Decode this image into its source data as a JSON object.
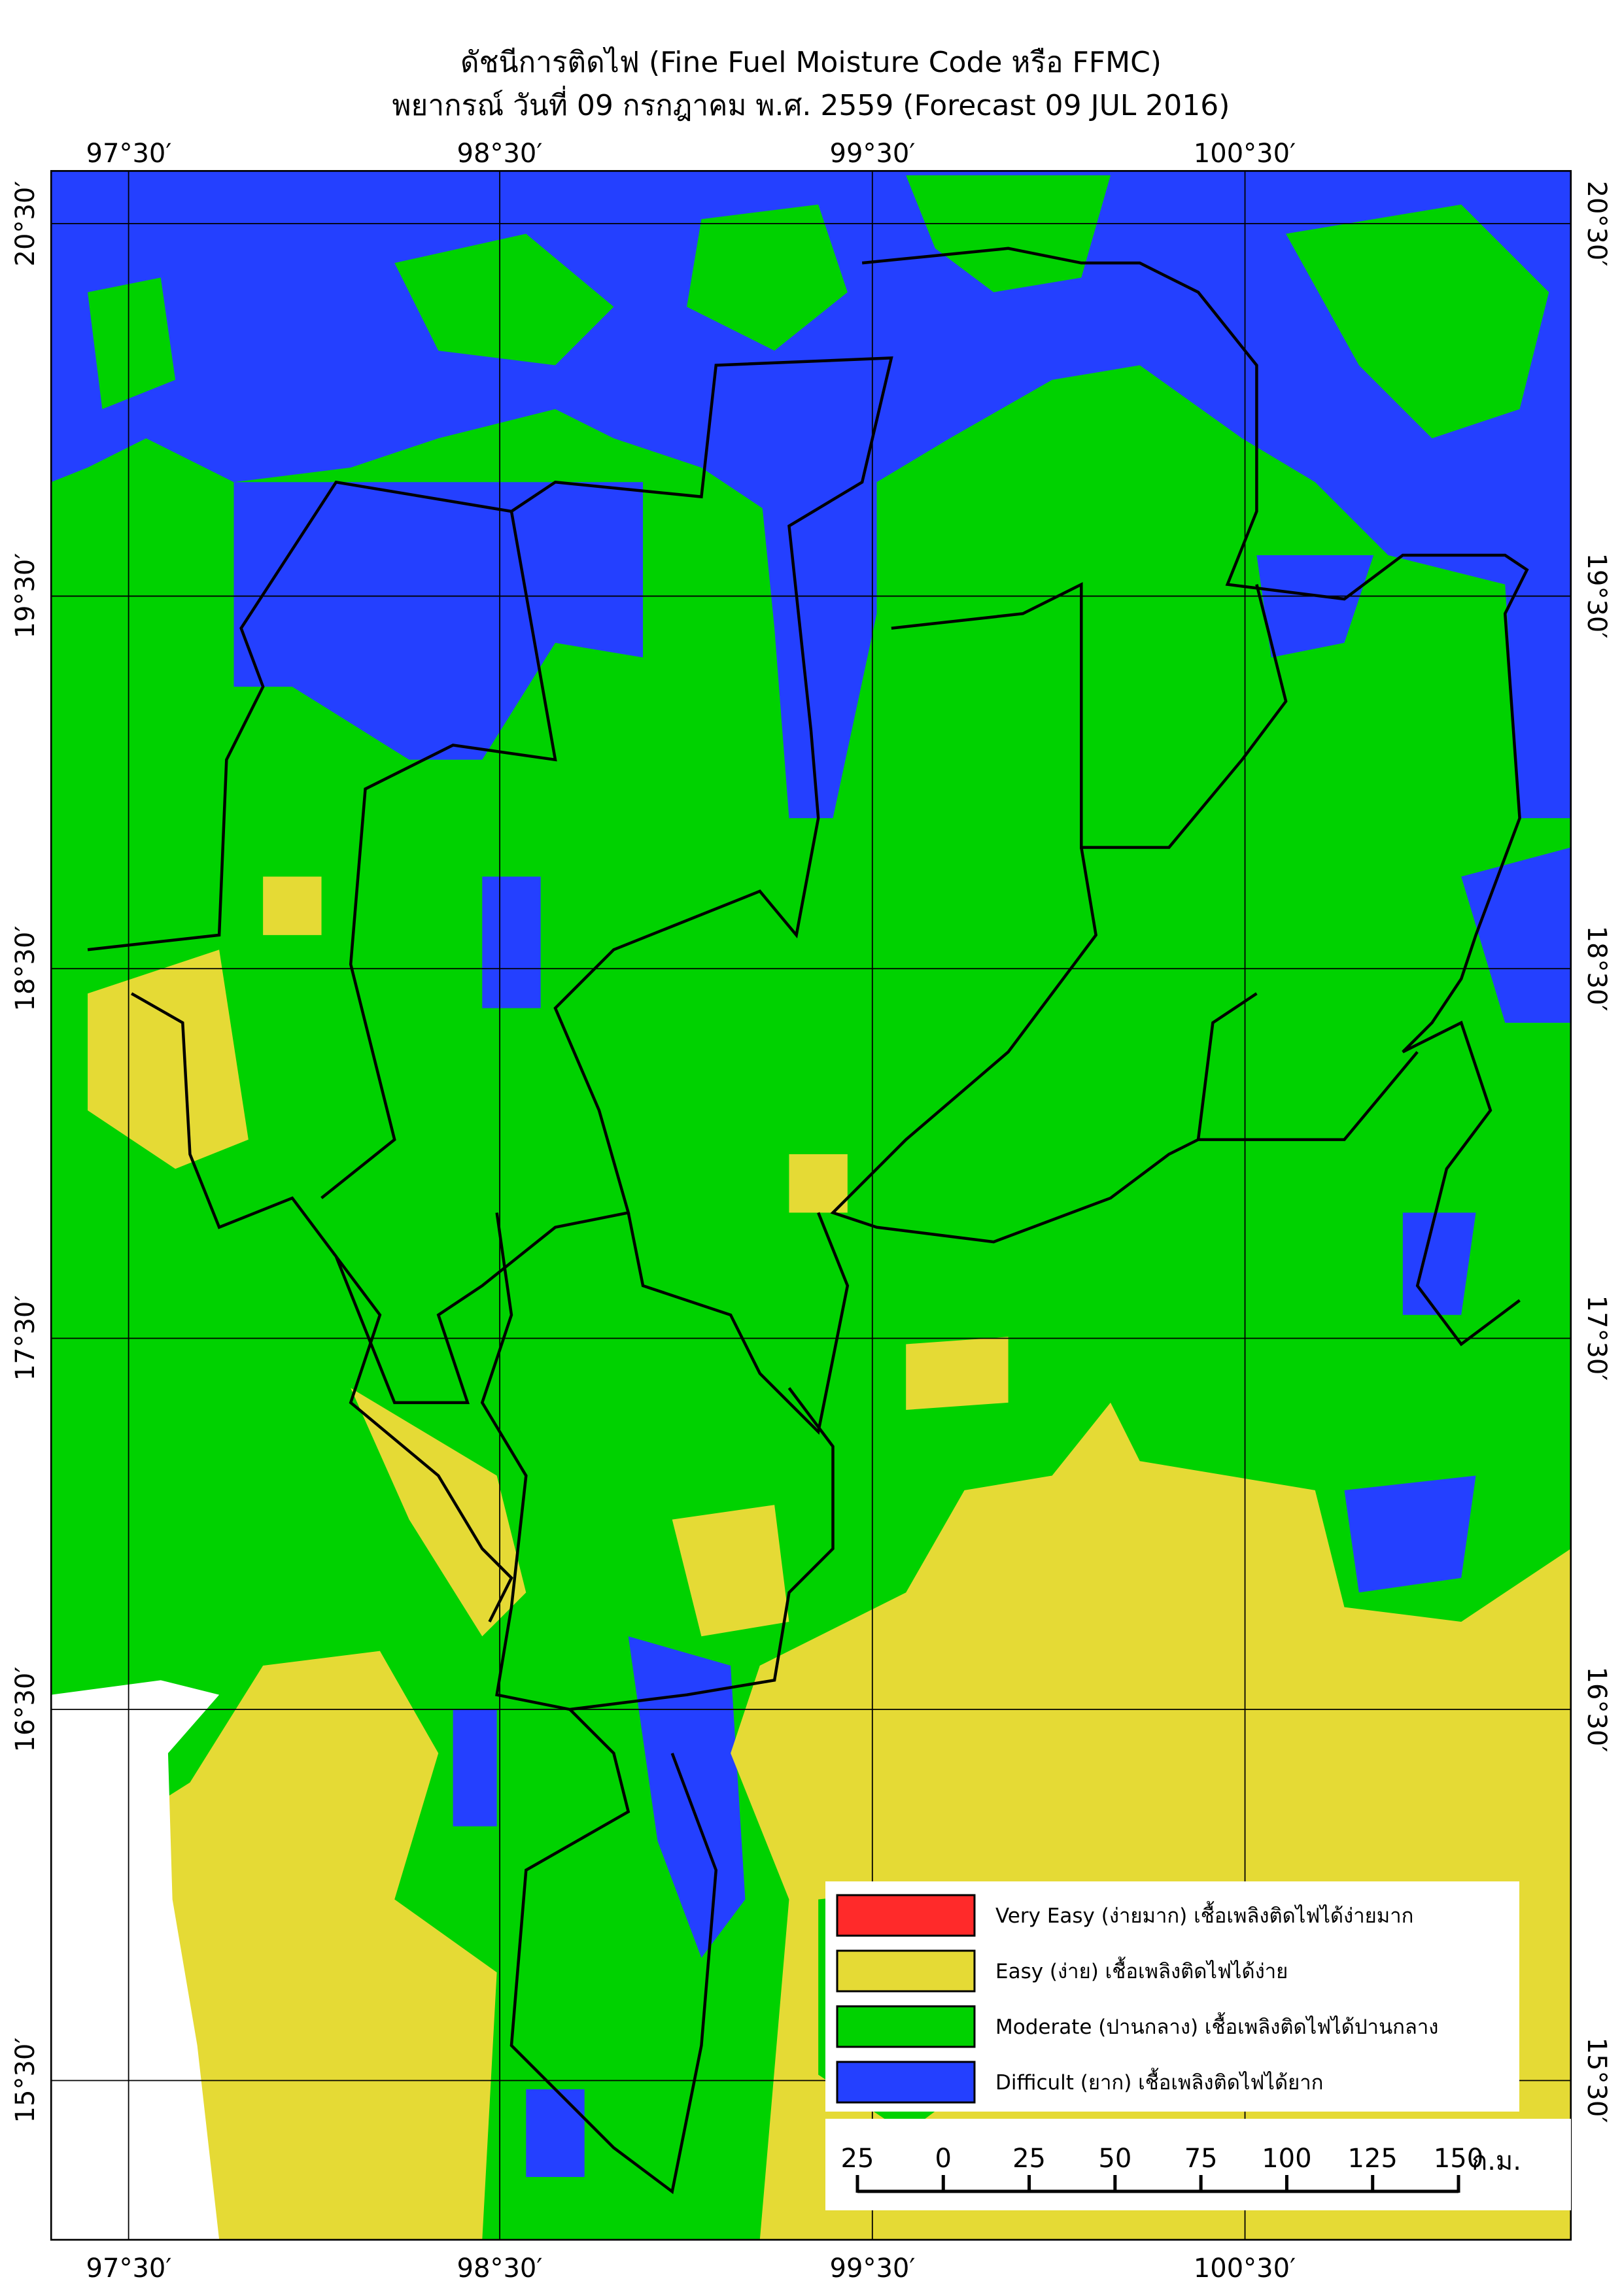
{
  "title": "ดัชนีการติดไฟ (Fine Fuel Moisture Code หรือ FFMC)",
  "subtitle": "พยากรณ์ วันที่ 09 กรกฎาคม พ.ศ. 2559 (Forecast 09 JUL 2016)",
  "longitude_labels": [
    "97°30′",
    "98°30′",
    "99°30′",
    "100°30′"
  ],
  "latitude_labels": [
    "20°30′",
    "19°30′",
    "18°30′",
    "17°30′",
    "16°30′",
    "15°30′"
  ],
  "legend": [
    {
      "label": "Very Easy (ง่ายมาก) เชื้อเพลิงติดไฟได้ง่ายมาก",
      "color": "#ff2a2a"
    },
    {
      "label": "Easy (ง่าย) เชื้อเพลิงติดไฟได้ง่าย",
      "color": "#e5da35"
    },
    {
      "label": "Moderate (ปานกลาง) เชื้อเพลิงติดไฟได้ปานกลาง",
      "color": "#00d200"
    },
    {
      "label": "Difficult (ยาก) เชื้อเพลิงติดไฟได้ยาก",
      "color": "#2440ff"
    }
  ],
  "scale_bar": {
    "labels": [
      "25",
      "0",
      "25",
      "50",
      "75",
      "100",
      "125",
      "150"
    ],
    "unit": "ก.ม."
  }
}
